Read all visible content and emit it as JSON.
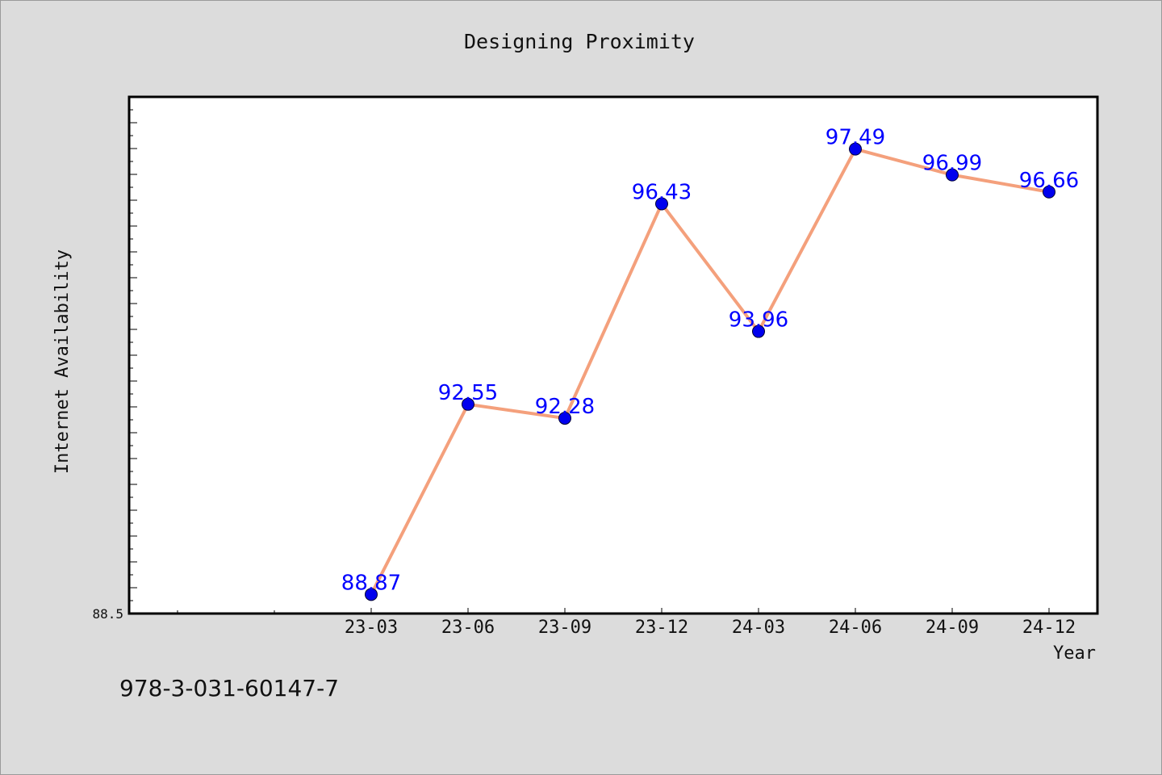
{
  "chart_data": {
    "type": "line",
    "title": "Designing Proximity",
    "xlabel": "Year",
    "ylabel": "Internet Availability",
    "categories": [
      "23-03",
      "23-06",
      "23-09",
      "23-12",
      "24-03",
      "24-06",
      "24-09",
      "24-12"
    ],
    "series": [
      {
        "values": [
          88.87,
          92.55,
          92.28,
          96.43,
          93.96,
          97.49,
          96.99,
          96.66
        ],
        "color": "#f4a07c",
        "marker_color": "#0000ee"
      }
    ],
    "ylim": [
      88.5,
      98.5
    ],
    "y_tick_labels": [
      "88.5"
    ],
    "grid": false,
    "data_labels": true,
    "data_label_color": "#0000ff"
  },
  "footer": {
    "isbn": "978-3-031-60147-7"
  }
}
